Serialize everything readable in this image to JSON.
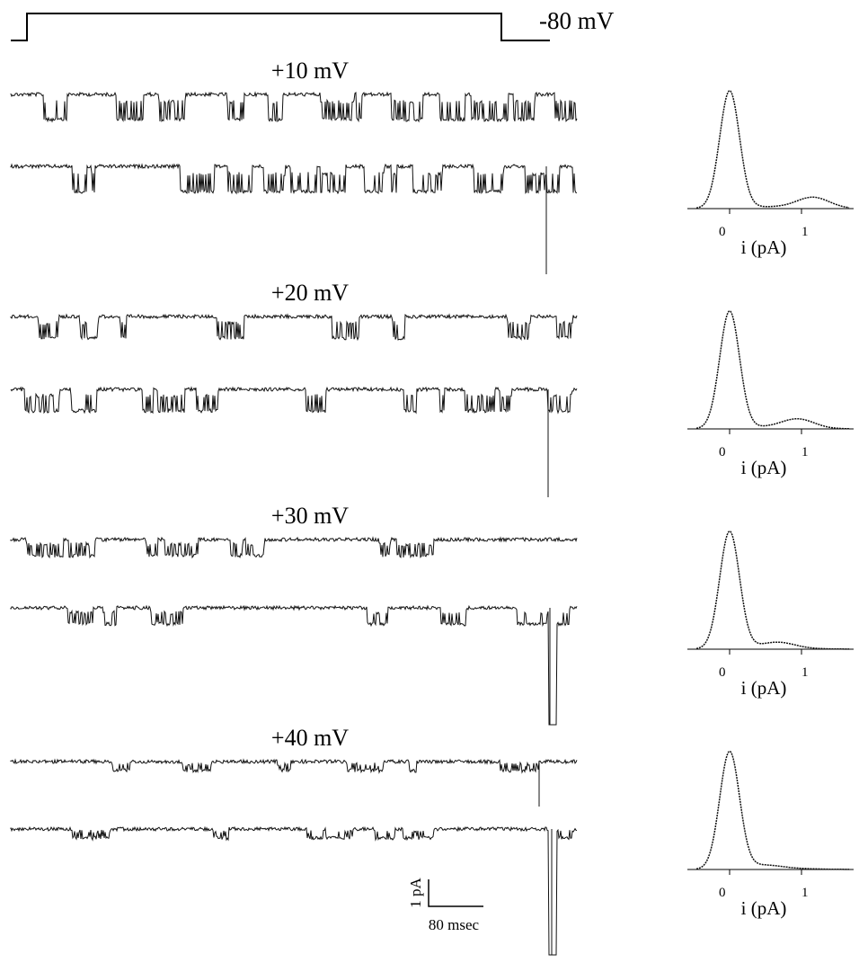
{
  "protocol": {
    "label": "-80 mV"
  },
  "panels": [
    {
      "label": "+10 mV",
      "histogram": {
        "tick_low": "0",
        "tick_high": "1",
        "xlabel": "i (pA)"
      }
    },
    {
      "label": "+20 mV",
      "histogram": {
        "tick_low": "0",
        "tick_high": "1",
        "xlabel": "i (pA)"
      }
    },
    {
      "label": "+30 mV",
      "histogram": {
        "tick_low": "0",
        "tick_high": "1",
        "xlabel": "i (pA)"
      }
    },
    {
      "label": "+40 mV",
      "histogram": {
        "tick_low": "0",
        "tick_high": "1",
        "xlabel": "i (pA)"
      }
    }
  ],
  "scale_bar": {
    "current": "1 pA",
    "time": "80 msec"
  }
}
